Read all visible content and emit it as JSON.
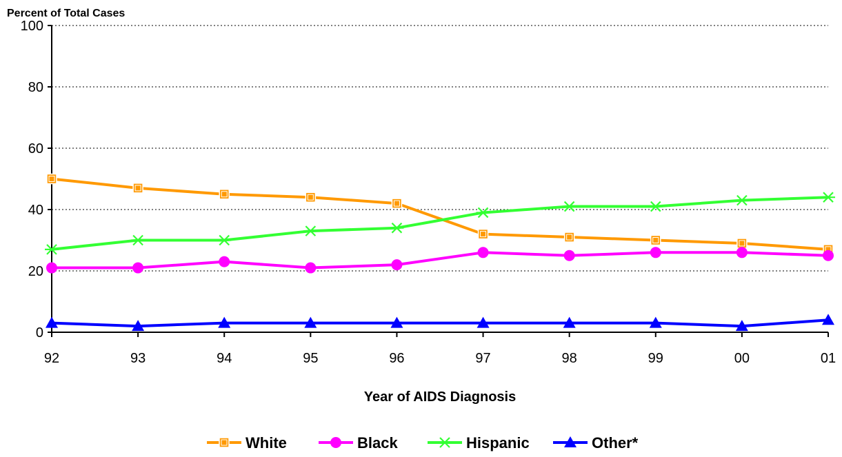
{
  "chart_data": {
    "type": "line",
    "title": "",
    "ylabel": "Percent of Total Cases",
    "xlabel": "Year of AIDS Diagnosis",
    "categories": [
      "92",
      "93",
      "94",
      "95",
      "96",
      "97",
      "98",
      "99",
      "00",
      "01"
    ],
    "ylim": [
      0,
      100
    ],
    "yticks": [
      0,
      20,
      40,
      60,
      80,
      100
    ],
    "grid": true,
    "legend_position": "bottom",
    "series": [
      {
        "name": "White",
        "color": "#FF9900",
        "marker": "square",
        "values": [
          50,
          47,
          45,
          44,
          42,
          32,
          31,
          30,
          29,
          27
        ]
      },
      {
        "name": "Black",
        "color": "#FF00FF",
        "marker": "circle",
        "values": [
          21,
          21,
          23,
          21,
          22,
          26,
          25,
          26,
          26,
          25
        ]
      },
      {
        "name": "Hispanic",
        "color": "#33FF33",
        "marker": "asterisk",
        "values": [
          27,
          30,
          30,
          33,
          34,
          39,
          41,
          41,
          43,
          44
        ]
      },
      {
        "name": "Other*",
        "color": "#0000FF",
        "marker": "triangle",
        "values": [
          3,
          2,
          3,
          3,
          3,
          3,
          3,
          3,
          2,
          4
        ]
      }
    ]
  }
}
